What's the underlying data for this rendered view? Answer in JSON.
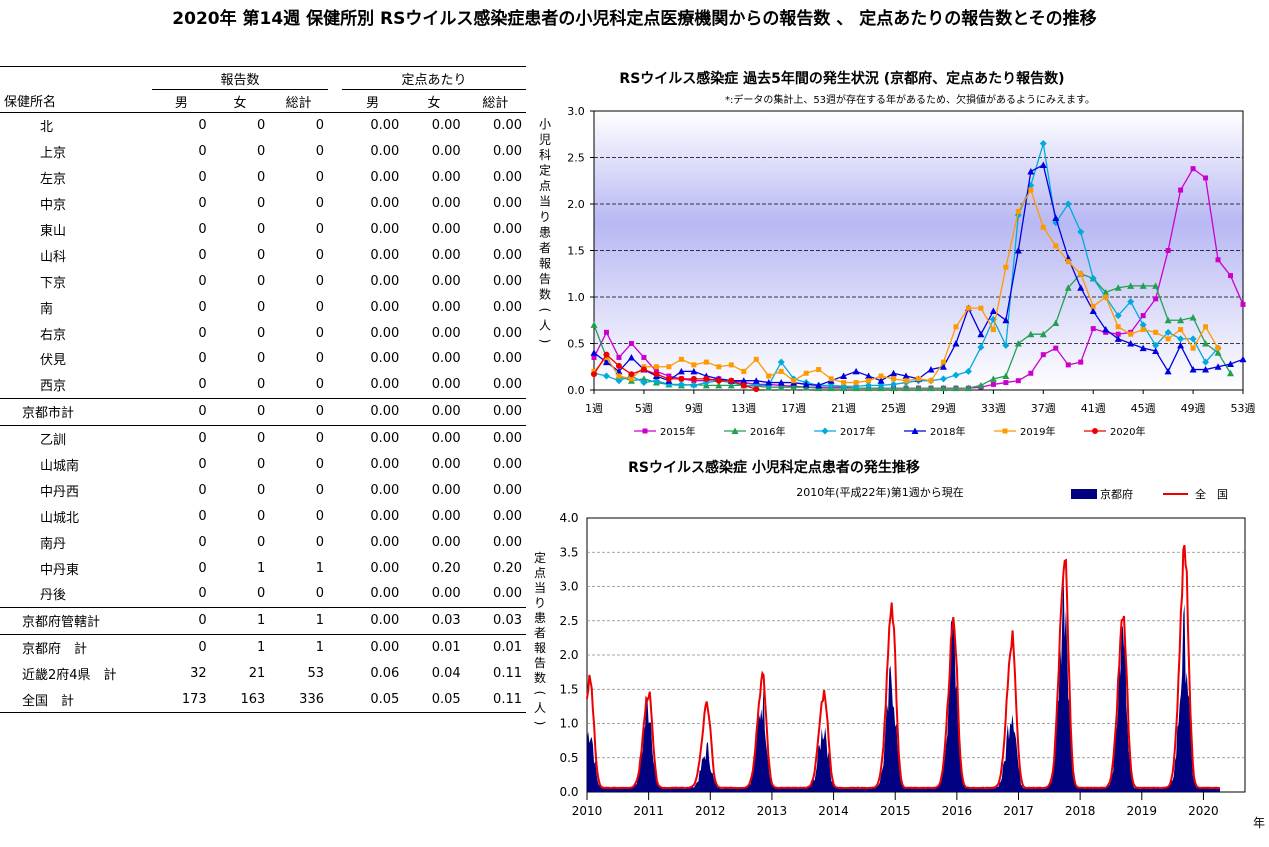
{
  "page": {
    "title": "2020年 第14週 保健所別 RSウイルス感染症患者の小児科定点医療機関からの報告数 、 定点あたりの報告数とその推移"
  },
  "table": {
    "group_headers": [
      "報告数",
      "定点あたり"
    ],
    "columns": [
      "保健所名",
      "男",
      "女",
      "総計",
      "男",
      "女",
      "総計"
    ],
    "rows": [
      {
        "name": "北",
        "cells": [
          "0",
          "0",
          "0",
          "0.00",
          "0.00",
          "0.00"
        ]
      },
      {
        "name": "上京",
        "cells": [
          "0",
          "0",
          "0",
          "0.00",
          "0.00",
          "0.00"
        ]
      },
      {
        "name": "左京",
        "cells": [
          "0",
          "0",
          "0",
          "0.00",
          "0.00",
          "0.00"
        ]
      },
      {
        "name": "中京",
        "cells": [
          "0",
          "0",
          "0",
          "0.00",
          "0.00",
          "0.00"
        ]
      },
      {
        "name": "東山",
        "cells": [
          "0",
          "0",
          "0",
          "0.00",
          "0.00",
          "0.00"
        ]
      },
      {
        "name": "山科",
        "cells": [
          "0",
          "0",
          "0",
          "0.00",
          "0.00",
          "0.00"
        ]
      },
      {
        "name": "下京",
        "cells": [
          "0",
          "0",
          "0",
          "0.00",
          "0.00",
          "0.00"
        ]
      },
      {
        "name": "南",
        "cells": [
          "0",
          "0",
          "0",
          "0.00",
          "0.00",
          "0.00"
        ]
      },
      {
        "name": "右京",
        "cells": [
          "0",
          "0",
          "0",
          "0.00",
          "0.00",
          "0.00"
        ]
      },
      {
        "name": "伏見",
        "cells": [
          "0",
          "0",
          "0",
          "0.00",
          "0.00",
          "0.00"
        ]
      },
      {
        "name": "西京",
        "cells": [
          "0",
          "0",
          "0",
          "0.00",
          "0.00",
          "0.00"
        ]
      },
      {
        "name": "京都市計",
        "cells": [
          "0",
          "0",
          "0",
          "0.00",
          "0.00",
          "0.00"
        ]
      },
      {
        "name": "乙訓",
        "cells": [
          "0",
          "0",
          "0",
          "0.00",
          "0.00",
          "0.00"
        ]
      },
      {
        "name": "山城南",
        "cells": [
          "0",
          "0",
          "0",
          "0.00",
          "0.00",
          "0.00"
        ]
      },
      {
        "name": "中丹西",
        "cells": [
          "0",
          "0",
          "0",
          "0.00",
          "0.00",
          "0.00"
        ]
      },
      {
        "name": "山城北",
        "cells": [
          "0",
          "0",
          "0",
          "0.00",
          "0.00",
          "0.00"
        ]
      },
      {
        "name": "南丹",
        "cells": [
          "0",
          "0",
          "0",
          "0.00",
          "0.00",
          "0.00"
        ]
      },
      {
        "name": "中丹東",
        "cells": [
          "0",
          "1",
          "1",
          "0.00",
          "0.20",
          "0.20"
        ]
      },
      {
        "name": "丹後",
        "cells": [
          "0",
          "0",
          "0",
          "0.00",
          "0.00",
          "0.00"
        ]
      },
      {
        "name": "京都府管轄計",
        "cells": [
          "0",
          "1",
          "1",
          "0.00",
          "0.03",
          "0.03"
        ]
      },
      {
        "name": "京都府　計",
        "cells": [
          "0",
          "1",
          "1",
          "0.00",
          "0.01",
          "0.01"
        ]
      },
      {
        "name": "近畿2府4県　計",
        "cells": [
          "32",
          "21",
          "53",
          "0.06",
          "0.04",
          "0.11"
        ]
      },
      {
        "name": "全国　計",
        "cells": [
          "173",
          "163",
          "336",
          "0.05",
          "0.05",
          "0.11"
        ]
      }
    ]
  },
  "chart_data": [
    {
      "type": "line",
      "title": "RSウイルス感染症 過去5年間の発生状況 (京都府、定点あたり報告数)",
      "subtitle": "*:データの集計上、53週が存在する年があるため、欠損値があるようにみえます。",
      "ylabel": "小児科定点当り患者報告数(人)",
      "ylim": [
        0,
        3.0
      ],
      "yticks": [
        "0.0",
        "0.5",
        "1.0",
        "1.5",
        "2.0",
        "2.5",
        "3.0"
      ],
      "xticks": [
        "1週",
        "5週",
        "9週",
        "13週",
        "17週",
        "21週",
        "25週",
        "29週",
        "33週",
        "37週",
        "41週",
        "45週",
        "49週",
        "53週"
      ],
      "legend_position": "bottom",
      "series": [
        {
          "name": "2015年",
          "color": "#cc00cc",
          "marker": "square",
          "values": [
            0.35,
            0.62,
            0.35,
            0.5,
            0.35,
            0.2,
            0.15,
            0.12,
            0.1,
            0.1,
            0.12,
            0.1,
            0.08,
            0.06,
            0.06,
            0.05,
            0.04,
            0.03,
            0.03,
            0.03,
            0.03,
            0.02,
            0.02,
            0.02,
            0.02,
            0.02,
            0.02,
            0.02,
            0.02,
            0.02,
            0.02,
            0.03,
            0.06,
            0.08,
            0.1,
            0.18,
            0.38,
            0.45,
            0.27,
            0.3,
            0.66,
            0.62,
            0.6,
            0.62,
            0.8,
            0.98,
            1.5,
            2.15,
            2.38,
            2.28,
            1.4,
            1.23,
            0.92
          ]
        },
        {
          "name": "2016年",
          "color": "#22a050",
          "marker": "triangle",
          "values": [
            0.7,
            0.35,
            0.15,
            0.1,
            0.12,
            0.08,
            0.06,
            0.05,
            0.06,
            0.05,
            0.05,
            0.05,
            0.05,
            0.04,
            0.03,
            0.03,
            0.03,
            0.03,
            0.02,
            0.02,
            0.02,
            0.02,
            0.02,
            0.02,
            0.02,
            0.02,
            0.02,
            0.02,
            0.02,
            0.02,
            0.02,
            0.05,
            0.12,
            0.15,
            0.5,
            0.6,
            0.6,
            0.72,
            1.1,
            1.25,
            1.2,
            1.05,
            1.1,
            1.12,
            1.12,
            1.12,
            0.75,
            0.75,
            0.78,
            0.5,
            0.4,
            0.18
          ]
        },
        {
          "name": "2017年",
          "color": "#00aadd",
          "marker": "diamond",
          "values": [
            0.18,
            0.15,
            0.1,
            0.15,
            0.08,
            0.1,
            0.06,
            0.06,
            0.05,
            0.08,
            0.1,
            0.08,
            0.05,
            0.05,
            0.05,
            0.3,
            0.12,
            0.08,
            0.05,
            0.05,
            0.04,
            0.04,
            0.05,
            0.05,
            0.06,
            0.08,
            0.1,
            0.1,
            0.12,
            0.16,
            0.2,
            0.46,
            0.76,
            0.48,
            1.88,
            2.2,
            2.65,
            1.8,
            2.0,
            1.7,
            1.2,
            1.0,
            0.8,
            0.95,
            0.7,
            0.48,
            0.62,
            0.55,
            0.55,
            0.3,
            0.45
          ]
        },
        {
          "name": "2018年",
          "color": "#0000dd",
          "marker": "triangle",
          "values": [
            0.4,
            0.3,
            0.2,
            0.35,
            0.22,
            0.15,
            0.1,
            0.2,
            0.2,
            0.15,
            0.12,
            0.1,
            0.1,
            0.1,
            0.08,
            0.08,
            0.08,
            0.06,
            0.05,
            0.1,
            0.15,
            0.2,
            0.15,
            0.1,
            0.18,
            0.15,
            0.12,
            0.22,
            0.25,
            0.5,
            0.88,
            0.6,
            0.85,
            0.75,
            1.5,
            2.35,
            2.42,
            1.85,
            1.42,
            1.1,
            0.85,
            0.65,
            0.55,
            0.5,
            0.45,
            0.42,
            0.2,
            0.48,
            0.22,
            0.22,
            0.25,
            0.28,
            0.33
          ]
        },
        {
          "name": "2019年",
          "color": "#ff9900",
          "marker": "square",
          "values": [
            0.2,
            0.35,
            0.15,
            0.12,
            0.25,
            0.25,
            0.25,
            0.33,
            0.27,
            0.3,
            0.25,
            0.27,
            0.2,
            0.33,
            0.15,
            0.2,
            0.1,
            0.18,
            0.22,
            0.12,
            0.08,
            0.08,
            0.1,
            0.15,
            0.12,
            0.1,
            0.12,
            0.1,
            0.3,
            0.68,
            0.88,
            0.88,
            0.65,
            1.32,
            1.92,
            2.15,
            1.75,
            1.55,
            1.38,
            1.25,
            0.9,
            1.0,
            0.68,
            0.6,
            0.65,
            0.62,
            0.55,
            0.65,
            0.45,
            0.68,
            0.45
          ]
        },
        {
          "name": "2020年",
          "color": "#ee0000",
          "marker": "circle",
          "values": [
            0.17,
            0.38,
            0.26,
            0.17,
            0.22,
            0.17,
            0.12,
            0.12,
            0.12,
            0.12,
            0.1,
            0.1,
            0.05,
            0.01
          ]
        }
      ]
    },
    {
      "type": "area",
      "title": "RSウイルス感染症 小児科定点患者の発生推移",
      "subtitle": "2010年(平成22年)第1週から現在",
      "ylabel": "定点当り患者報告数(人)",
      "xlabel": "年",
      "ylim": [
        0,
        4.0
      ],
      "yticks": [
        "0.0",
        "0.5",
        "1.0",
        "1.5",
        "2.0",
        "2.5",
        "3.0",
        "3.5",
        "4.0"
      ],
      "xticks": [
        "2010",
        "2011",
        "2012",
        "2013",
        "2014",
        "2015",
        "2016",
        "2017",
        "2018",
        "2019",
        "2020"
      ],
      "legend_position": "top-right",
      "series": [
        {
          "name": "京都府",
          "color": "#000080",
          "kind": "area",
          "peaks": [
            [
              2010.05,
              0.85
            ],
            [
              2011.0,
              1.2
            ],
            [
              2011.95,
              0.55
            ],
            [
              2012.85,
              1.3
            ],
            [
              2013.85,
              0.9
            ],
            [
              2014.95,
              1.6
            ],
            [
              2015.95,
              2.2
            ],
            [
              2016.9,
              1.2
            ],
            [
              2017.75,
              2.9
            ],
            [
              2018.7,
              2.2
            ],
            [
              2019.7,
              2.15
            ]
          ]
        },
        {
          "name": "全　国",
          "color": "#ee0000",
          "kind": "line",
          "peaks": [
            [
              2010.05,
              1.58
            ],
            [
              2011.0,
              1.4
            ],
            [
              2011.95,
              1.2
            ],
            [
              2012.85,
              1.62
            ],
            [
              2013.85,
              1.4
            ],
            [
              2014.95,
              2.6
            ],
            [
              2015.95,
              2.37
            ],
            [
              2016.9,
              2.22
            ],
            [
              2017.75,
              3.37
            ],
            [
              2018.7,
              2.47
            ],
            [
              2019.7,
              3.45
            ]
          ]
        }
      ]
    }
  ]
}
